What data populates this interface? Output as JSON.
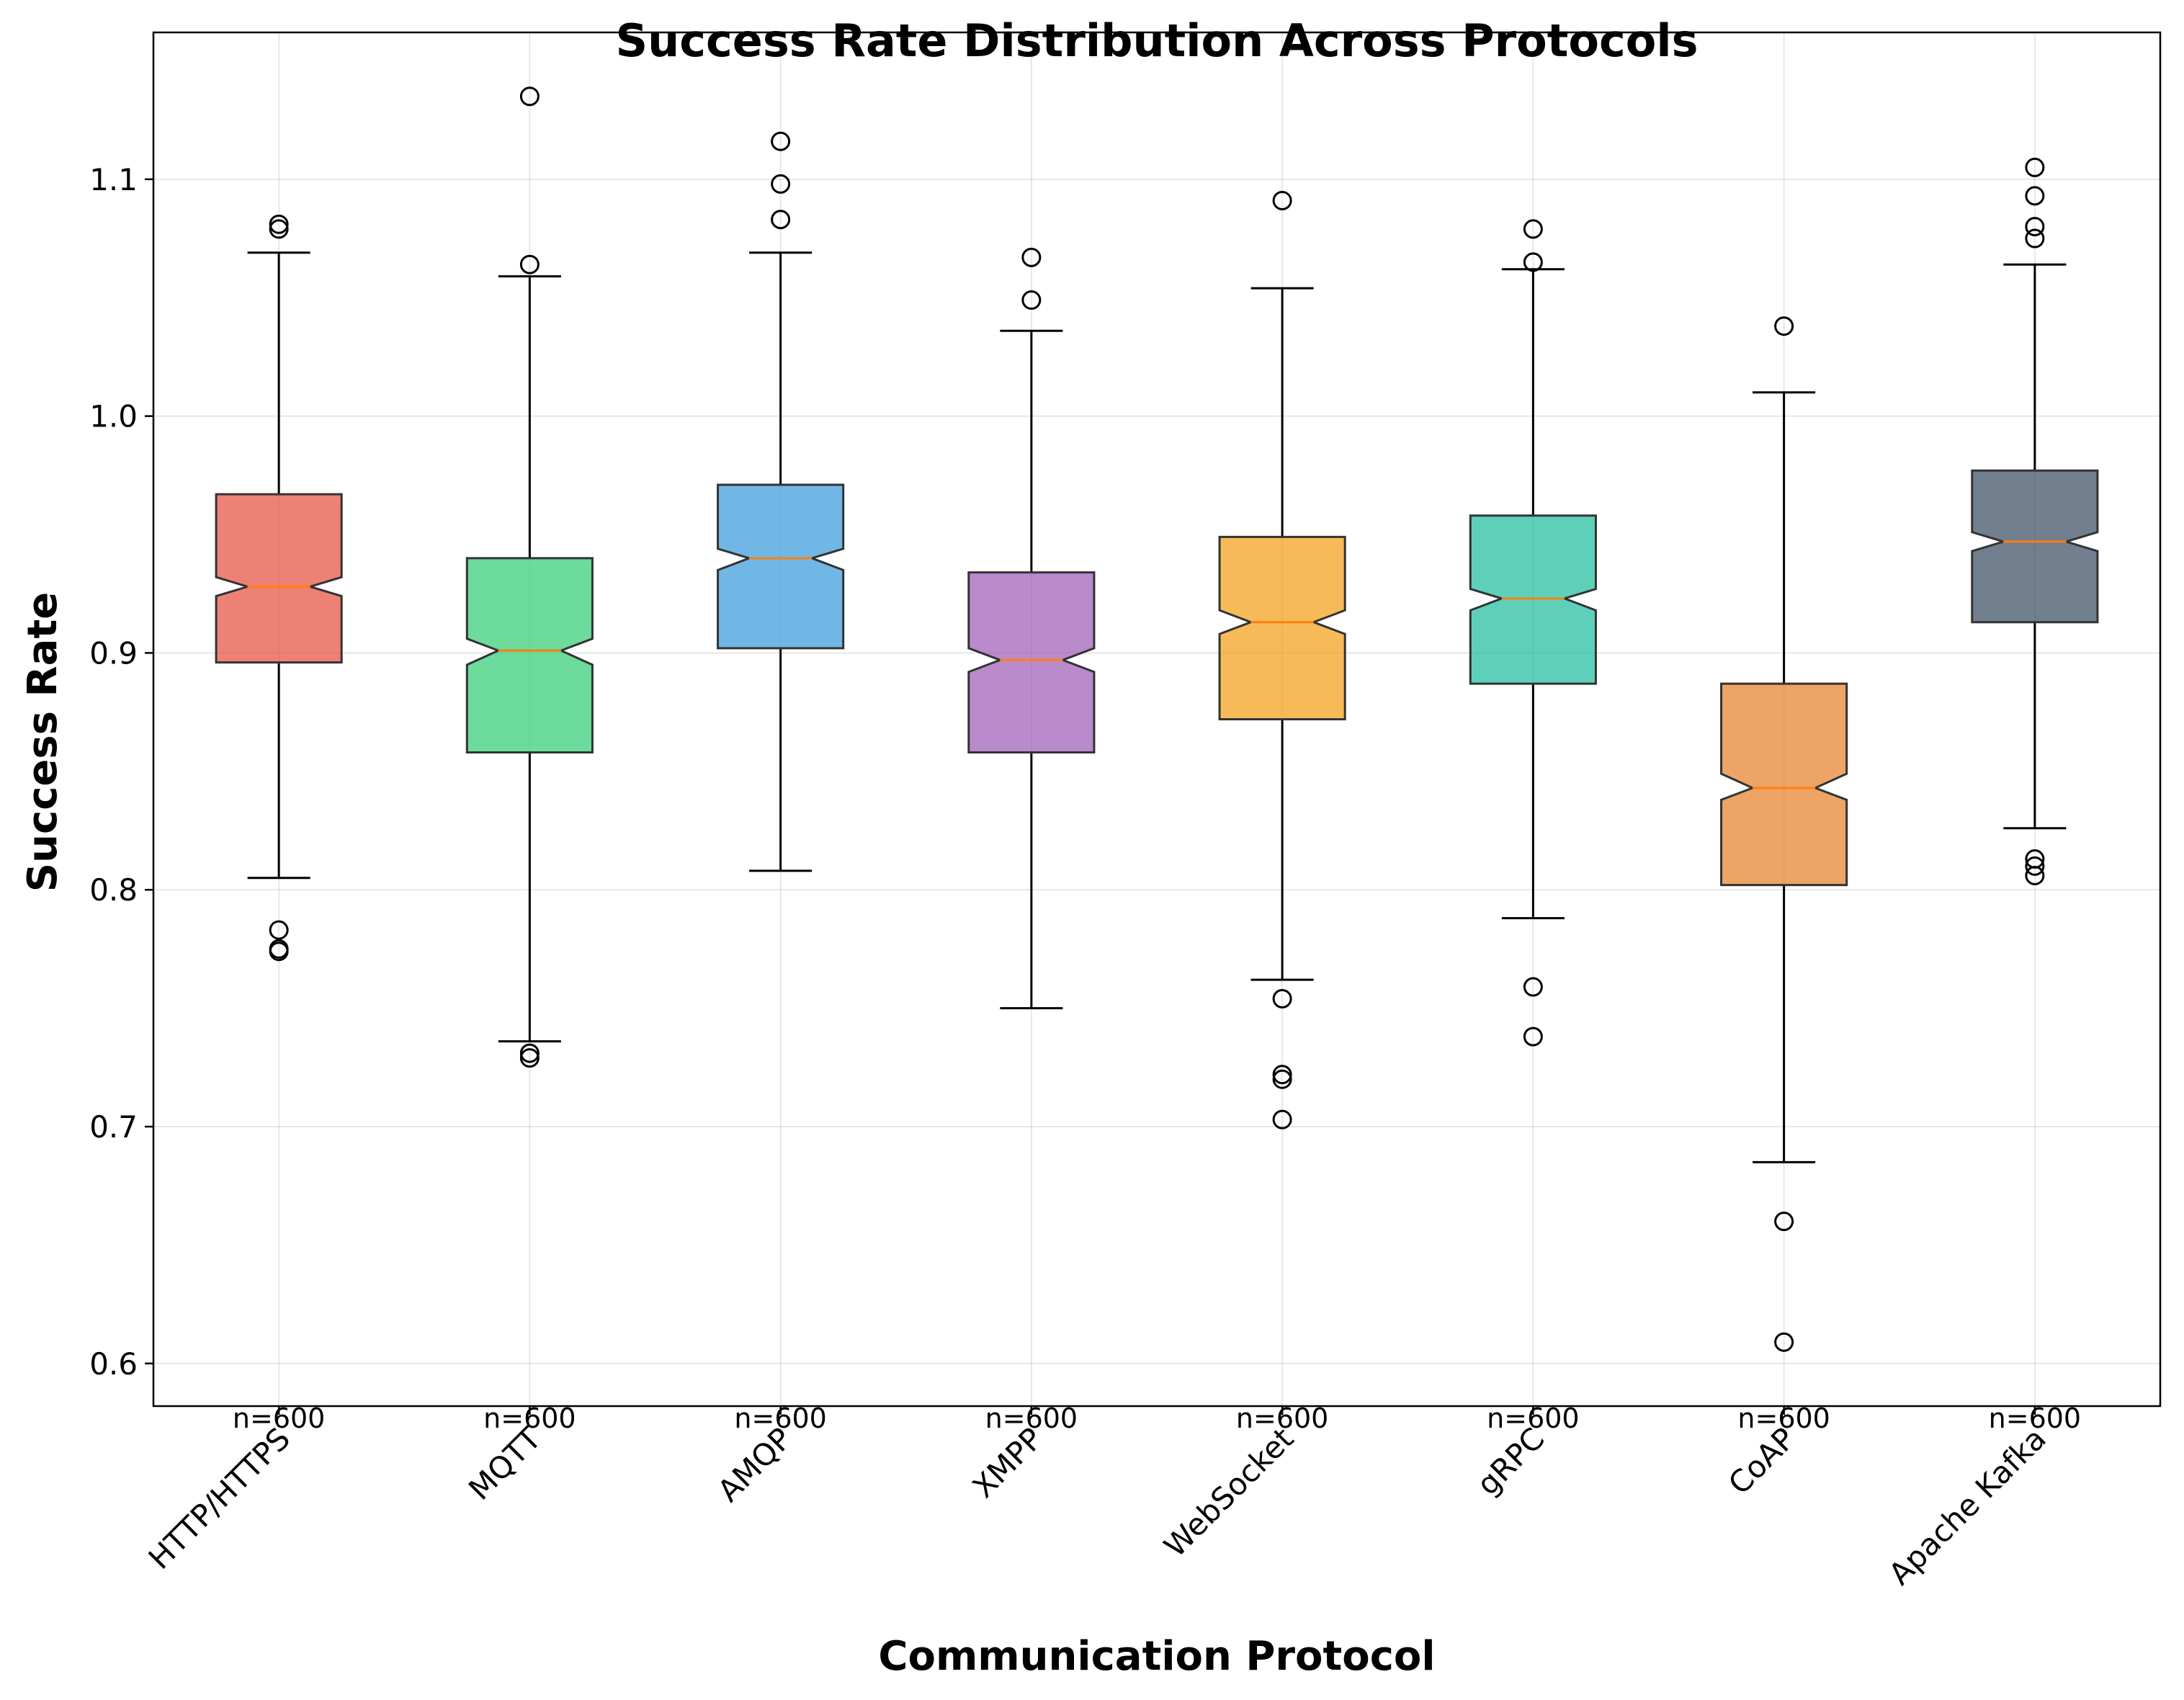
{
  "chart_data": {
    "type": "boxplot",
    "title": "Success Rate Distribution Across Protocols",
    "xlabel": "Communication Protocol",
    "ylabel": "Success Rate",
    "ylim": [
      0.582,
      1.162
    ],
    "yticks": [
      0.6,
      0.7,
      0.8,
      0.9,
      1.0,
      1.1
    ],
    "ytick_labels": [
      "0.6",
      "0.7",
      "0.8",
      "0.9",
      "1.0",
      "1.1"
    ],
    "grid": true,
    "notched": true,
    "categories": [
      "HTTP/HTTPS",
      "MQTT",
      "AMQP",
      "XMPP",
      "WebSocket",
      "gRPC",
      "CoAP",
      "Apache Kafka"
    ],
    "counts": [
      "n=600",
      "n=600",
      "n=600",
      "n=600",
      "n=600",
      "n=600",
      "n=600",
      "n=600"
    ],
    "series": [
      {
        "q1": 0.896,
        "median": 0.928,
        "q3": 0.967,
        "whisker_low": 0.805,
        "whisker_high": 1.069,
        "notch_low": 0.924,
        "notch_high": 0.932,
        "fliers": [
          1.081,
          1.079,
          0.783,
          0.775,
          0.774
        ],
        "color": "#e74c3c"
      },
      {
        "q1": 0.858,
        "median": 0.901,
        "q3": 0.94,
        "whisker_low": 0.736,
        "whisker_high": 1.059,
        "notch_low": 0.895,
        "notch_high": 0.906,
        "fliers": [
          1.135,
          1.064,
          0.731,
          0.729
        ],
        "color": "#2ecc71"
      },
      {
        "q1": 0.902,
        "median": 0.94,
        "q3": 0.971,
        "whisker_low": 0.808,
        "whisker_high": 1.069,
        "notch_low": 0.935,
        "notch_high": 0.944,
        "fliers": [
          1.116,
          1.098,
          1.083
        ],
        "color": "#3498db"
      },
      {
        "q1": 0.858,
        "median": 0.897,
        "q3": 0.934,
        "whisker_low": 0.75,
        "whisker_high": 1.036,
        "notch_low": 0.892,
        "notch_high": 0.902,
        "fliers": [
          1.067,
          1.049
        ],
        "color": "#9b59b6"
      },
      {
        "q1": 0.872,
        "median": 0.913,
        "q3": 0.949,
        "whisker_low": 0.762,
        "whisker_high": 1.054,
        "notch_low": 0.908,
        "notch_high": 0.918,
        "fliers": [
          1.091,
          0.754,
          0.722,
          0.72,
          0.703
        ],
        "color": "#f39c12"
      },
      {
        "q1": 0.887,
        "median": 0.923,
        "q3": 0.958,
        "whisker_low": 0.788,
        "whisker_high": 1.062,
        "notch_low": 0.918,
        "notch_high": 0.927,
        "fliers": [
          1.079,
          1.065,
          0.759,
          0.738
        ],
        "color": "#1abc9c"
      },
      {
        "q1": 0.802,
        "median": 0.843,
        "q3": 0.887,
        "whisker_low": 0.685,
        "whisker_high": 1.01,
        "notch_low": 0.838,
        "notch_high": 0.849,
        "fliers": [
          1.038,
          0.66,
          0.609
        ],
        "color": "#e67e22"
      },
      {
        "q1": 0.913,
        "median": 0.947,
        "q3": 0.977,
        "whisker_low": 0.826,
        "whisker_high": 1.064,
        "notch_low": 0.943,
        "notch_high": 0.951,
        "fliers": [
          1.105,
          1.093,
          1.08,
          1.075,
          0.813,
          0.81,
          0.806
        ],
        "color": "#34495e"
      }
    ]
  }
}
